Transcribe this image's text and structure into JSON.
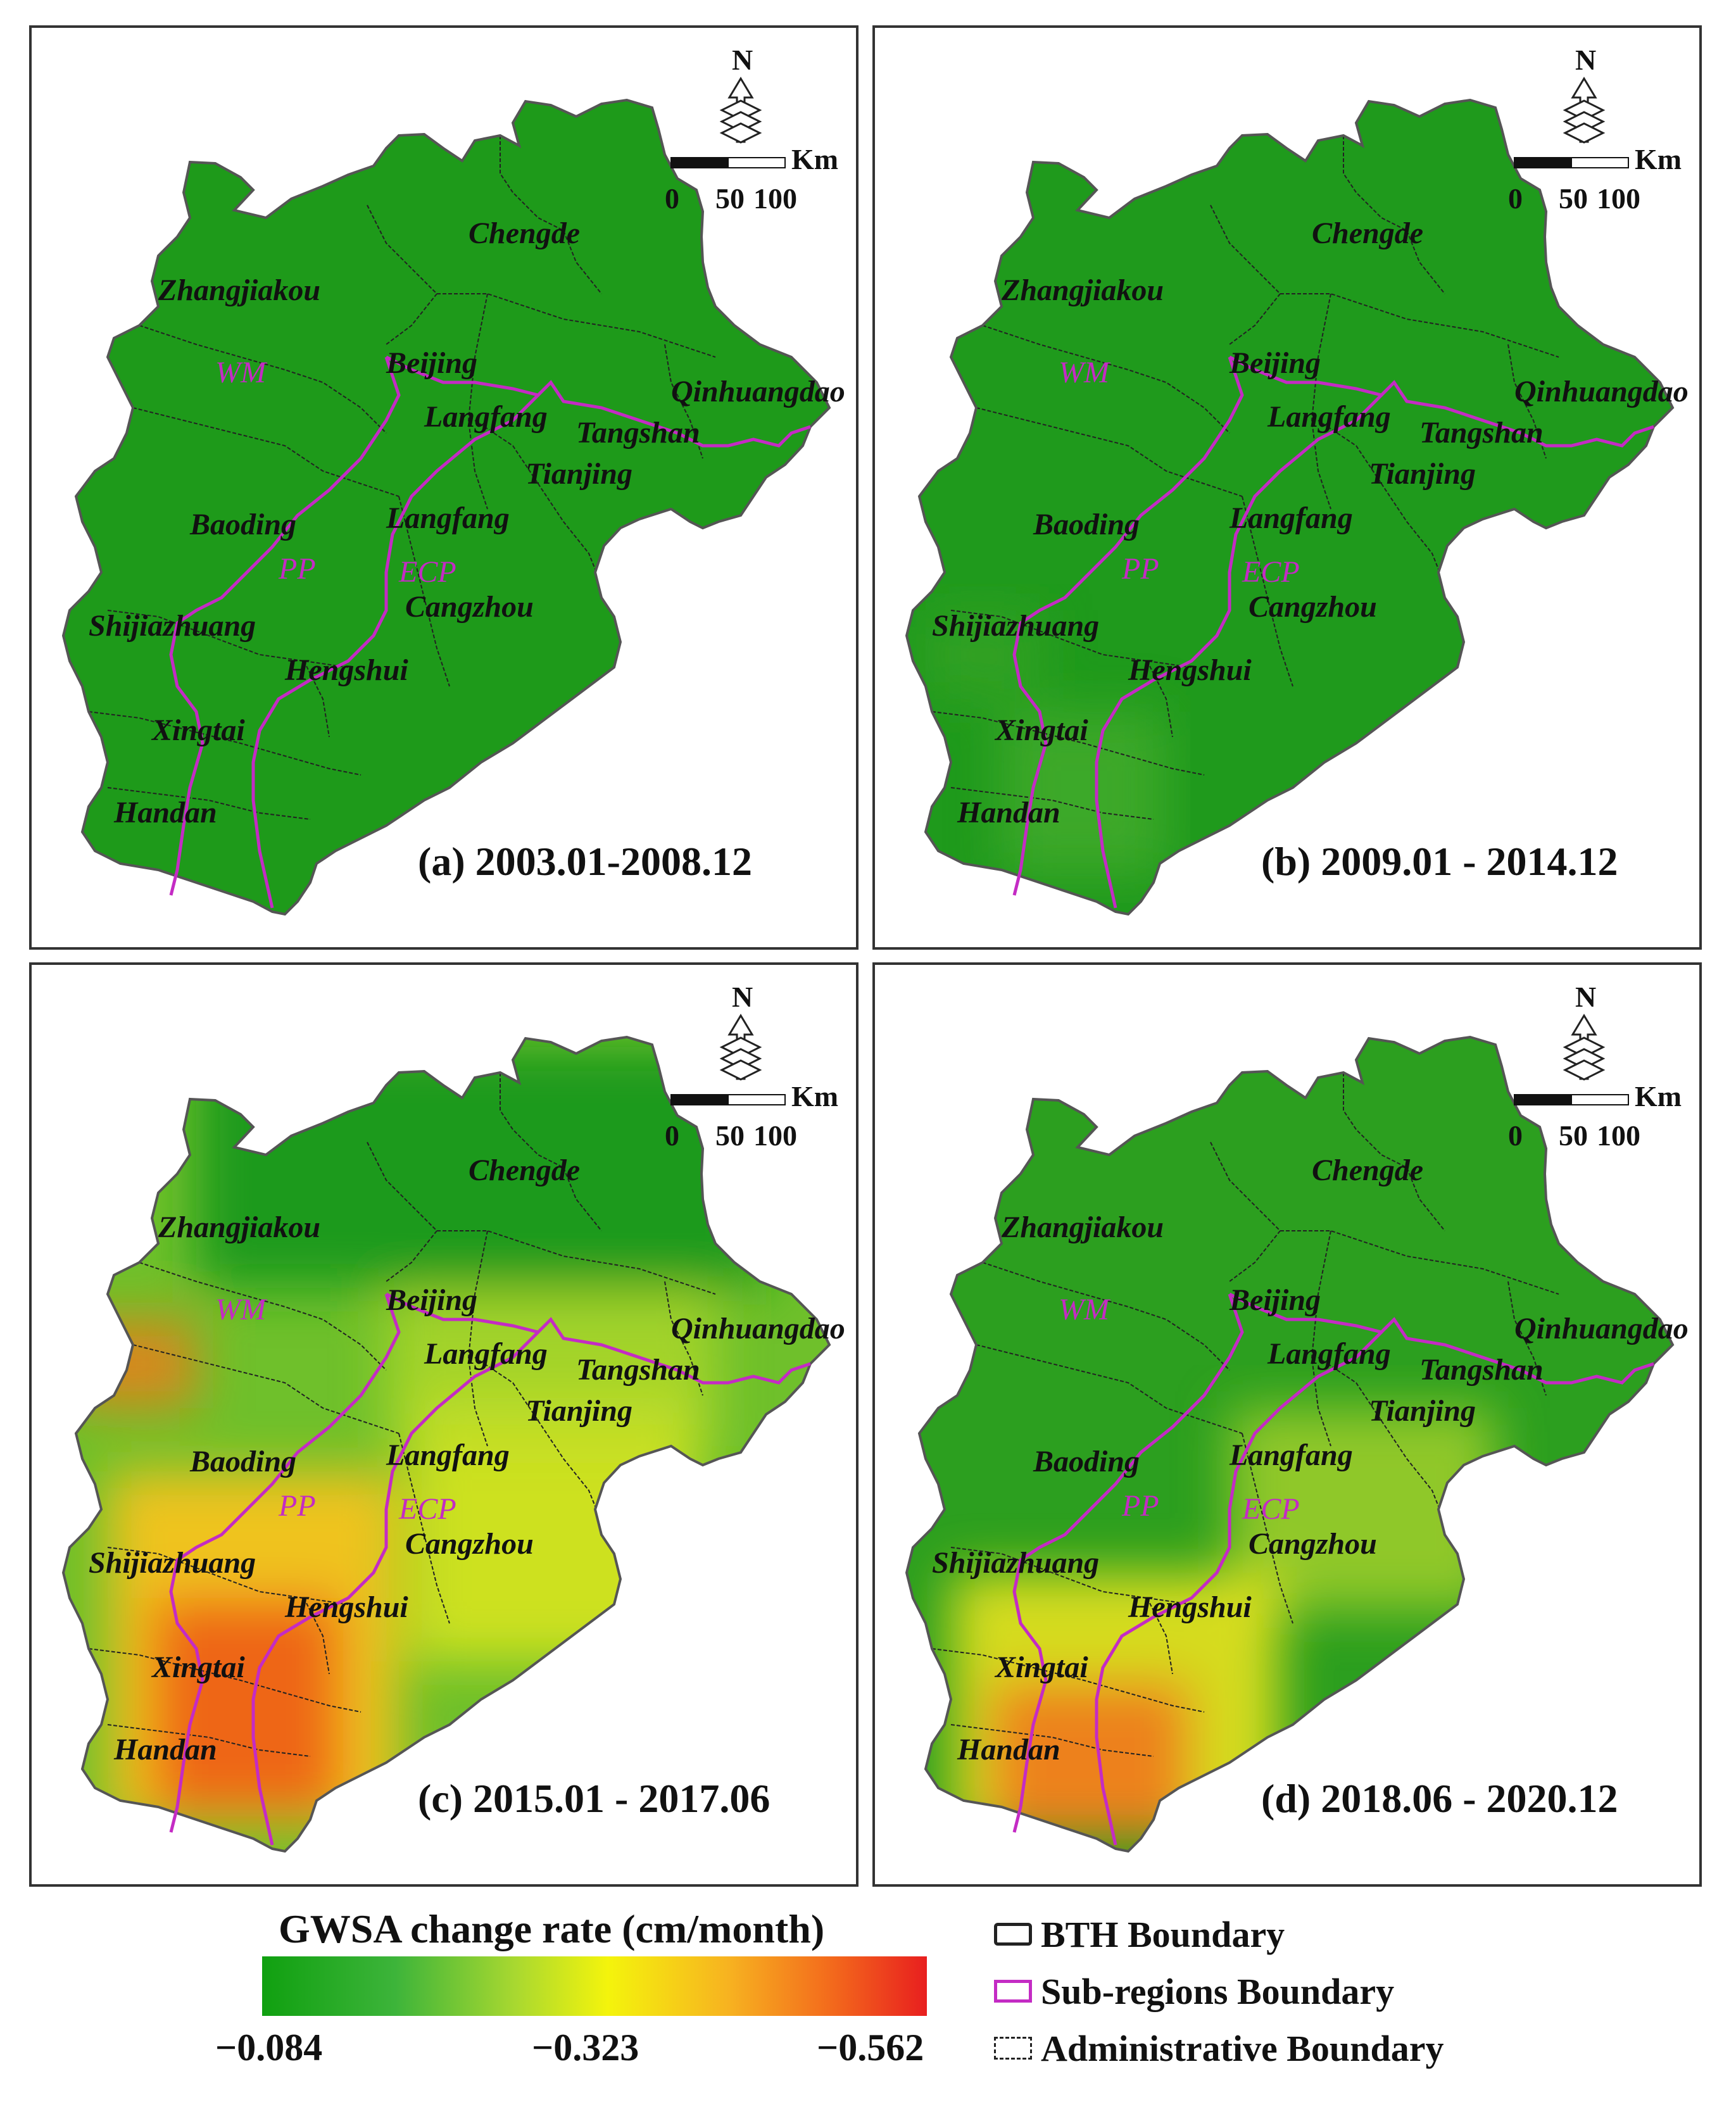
{
  "panels": [
    {
      "title": "(a) 2003.01-2008.12",
      "theme": "green"
    },
    {
      "title": "(b) 2009.01 - 2014.12",
      "theme": "green2"
    },
    {
      "title": "(c) 2015.01 - 2017.06",
      "theme": "hot"
    },
    {
      "title": "(d) 2018.06 - 2020.12",
      "theme": "mid"
    }
  ],
  "map_labels": {
    "chengde": "Chengde",
    "zhangjiakou": "Zhangjiakou",
    "beijing": "Beijing",
    "qinhuangdao": "Qinhuangdao",
    "langfang1": "Langfang",
    "tangshan": "Tangshan",
    "tianjing": "Tianjing",
    "baoding": "Baoding",
    "langfang2": "Langfang",
    "cangzhou": "Cangzhou",
    "shijiazhuang": "Shijiazhuang",
    "hengshui": "Hengshui",
    "xingtai": "Xingtai",
    "handan": "Handan"
  },
  "sub_regions": {
    "wm": "WM",
    "pp": "PP",
    "egp": "ECP"
  },
  "north_arrow": "N",
  "scale_bar": {
    "unit": "Km",
    "ticks": [
      "0",
      "50",
      "100"
    ]
  },
  "legend": {
    "title": "GWSA change rate (cm/month)",
    "tick_values": [
      "−0.084",
      "−0.323",
      "−0.562"
    ],
    "items": [
      {
        "label": "BTH Boundary",
        "style": "bth"
      },
      {
        "label": "Sub-regions Boundary",
        "style": "sub"
      },
      {
        "label": "Administrative Boundary",
        "style": "admin"
      }
    ],
    "colors": {
      "low": "#10a010",
      "mid": "#f4f40c",
      "high": "#e81f1f",
      "subregion": "#c42bc4"
    }
  }
}
